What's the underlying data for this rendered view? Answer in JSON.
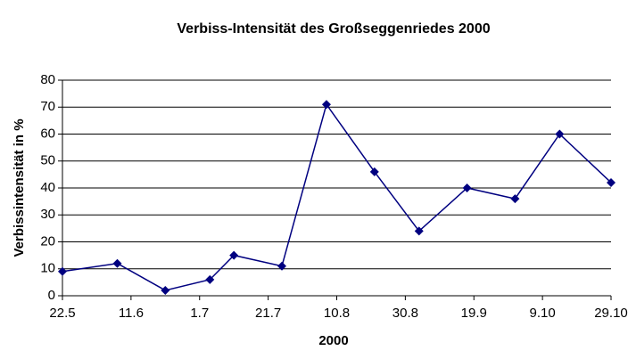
{
  "chart_data": {
    "type": "line",
    "title": "Verbiss-Intensität des Großseggenriedes 2000",
    "x_label": "2000",
    "y_label": "Verbissintensität in %",
    "x": [
      "2000-05-22",
      "2000-06-07",
      "2000-06-21",
      "2000-07-04",
      "2000-07-11",
      "2000-07-25",
      "2000-08-07",
      "2000-08-21",
      "2000-09-03",
      "2000-09-17",
      "2000-10-01",
      "2000-10-14",
      "2000-10-29"
    ],
    "series": [
      {
        "name": "Verbissintensität",
        "color": "#000080",
        "values": [
          9,
          12,
          2,
          6,
          15,
          11,
          71,
          46,
          24,
          40,
          36,
          60,
          42
        ]
      }
    ],
    "xlim": [
      "2000-05-22",
      "2000-10-29"
    ],
    "xticks": [
      {
        "value": "2000-05-22",
        "label": "22.5"
      },
      {
        "value": "2000-06-11",
        "label": "11.6"
      },
      {
        "value": "2000-07-01",
        "label": "1.7"
      },
      {
        "value": "2000-07-21",
        "label": "21.7"
      },
      {
        "value": "2000-08-10",
        "label": "10.8"
      },
      {
        "value": "2000-08-30",
        "label": "30.8"
      },
      {
        "value": "2000-09-19",
        "label": "19.9"
      },
      {
        "value": "2000-10-09",
        "label": "9.10"
      },
      {
        "value": "2000-10-29",
        "label": "29.10"
      }
    ],
    "ylim": [
      0,
      80
    ],
    "yticks": [
      0,
      10,
      20,
      30,
      40,
      50,
      60,
      70,
      80
    ],
    "grid": true
  }
}
